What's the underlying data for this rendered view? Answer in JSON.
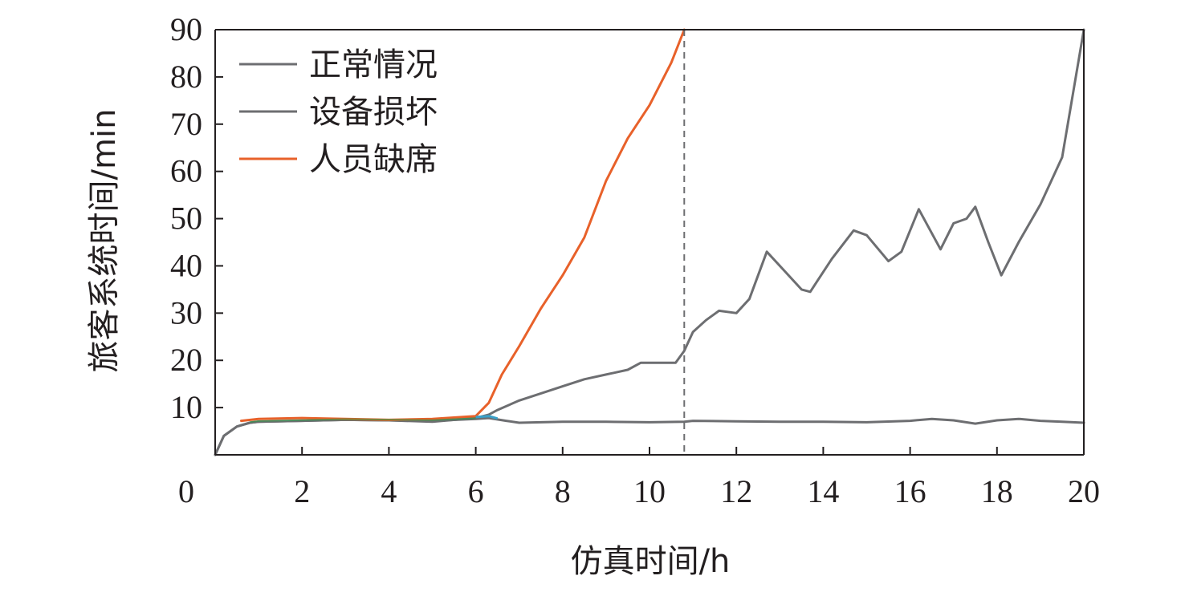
{
  "chart_data": {
    "type": "line",
    "title": "",
    "xlabel": "仿真时间/h",
    "ylabel": "旅客系统时间/min",
    "xlim": [
      0,
      20
    ],
    "ylim": [
      0,
      90
    ],
    "x_ticks": [
      "0",
      "2",
      "4",
      "6",
      "8",
      "10",
      "12",
      "14",
      "16",
      "18",
      "20"
    ],
    "y_ticks": [
      "10",
      "20",
      "30",
      "40",
      "50",
      "60",
      "70",
      "80",
      "90"
    ],
    "grid": false,
    "legend_position": "top-left",
    "reference_line_x": 10.8,
    "reference_line_color": "#6d6e71",
    "series": [
      {
        "name": "正常情况",
        "color": "#6d6e71",
        "x": [
          0,
          0.2,
          0.5,
          0.8,
          1,
          2,
          3,
          4,
          5,
          6,
          6.3,
          6.7,
          7,
          8,
          9,
          10,
          10.8,
          11,
          12,
          13,
          14,
          15,
          16,
          16.5,
          17,
          17.5,
          18,
          18.5,
          19,
          19.5,
          20
        ],
        "y": [
          0,
          4,
          6,
          6.8,
          7,
          7.2,
          7.4,
          7.3,
          7.2,
          7.6,
          7.8,
          7.2,
          6.8,
          7,
          7,
          6.9,
          7,
          7.2,
          7.1,
          7,
          7,
          6.9,
          7.2,
          7.6,
          7.3,
          6.6,
          7.3,
          7.6,
          7.2,
          7,
          6.8
        ]
      },
      {
        "name": "设备损坏",
        "color": "#6d6e71",
        "x": [
          0,
          0.2,
          0.5,
          0.8,
          1,
          2,
          3,
          4,
          5,
          6,
          6.3,
          6.5,
          7,
          7.5,
          8,
          8.5,
          9,
          9.5,
          9.8,
          10.3,
          10.6,
          10.8,
          11,
          11.3,
          11.6,
          12,
          12.3,
          12.7,
          13,
          13.5,
          13.7,
          14.2,
          14.7,
          15,
          15.5,
          15.8,
          16.2,
          16.7,
          17,
          17.3,
          17.5,
          17.8,
          18.1,
          18.5,
          19,
          19.5,
          20
        ],
        "y": [
          0,
          4,
          6,
          6.8,
          7,
          7.2,
          7.4,
          7.3,
          7,
          7.8,
          8.5,
          9.5,
          11.5,
          13,
          14.5,
          16,
          17,
          18,
          19.5,
          19.5,
          19.5,
          22,
          26,
          28.5,
          30.5,
          30,
          33,
          43,
          40,
          35,
          34.5,
          41.5,
          47.5,
          46.5,
          41,
          43,
          52,
          43.5,
          49,
          50,
          52.5,
          45,
          38,
          45,
          53,
          63,
          90
        ]
      },
      {
        "name": "人员缺席",
        "color": "#e8612a",
        "x": [
          0.6,
          1,
          2,
          3,
          4,
          5,
          6,
          6.3,
          6.6,
          7,
          7.5,
          8,
          8.5,
          9,
          9.5,
          10,
          10.5,
          10.8
        ],
        "y": [
          7.2,
          7.6,
          7.8,
          7.6,
          7.4,
          7.6,
          8.2,
          11,
          17,
          23,
          31,
          38,
          46,
          58,
          67,
          74,
          83,
          90
        ]
      }
    ],
    "accent_colors": {
      "early_overlap_green": "#2e9a4a",
      "divergence_blue": "#3aa0c8"
    }
  }
}
